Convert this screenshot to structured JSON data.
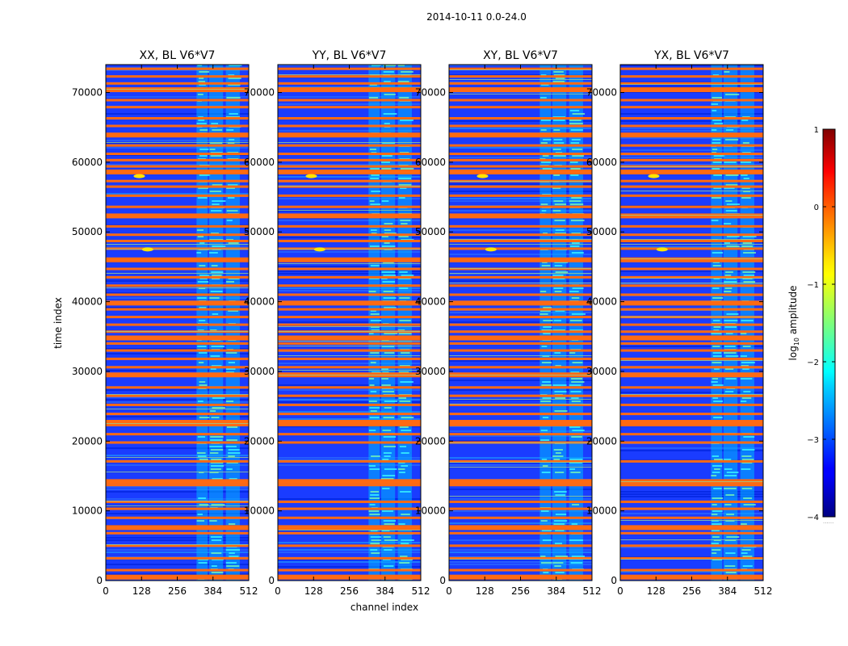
{
  "chart_data": {
    "type": "heatmap",
    "suptitle": "2014-10-11 0.0-24.0",
    "xlabel": "channel index",
    "ylabel": "time index",
    "xlim": [
      0,
      512
    ],
    "ylim": [
      0,
      74000
    ],
    "xticks": [
      0,
      128,
      256,
      384,
      512
    ],
    "yticks": [
      0,
      10000,
      20000,
      30000,
      40000,
      50000,
      60000,
      70000
    ],
    "panels": [
      {
        "title": "XX, BL V6*V7"
      },
      {
        "title": "YY, BL V6*V7"
      },
      {
        "title": "XY, BL V6*V7"
      },
      {
        "title": "YX, BL V6*V7"
      }
    ],
    "colorbar": {
      "label_prefix": "log",
      "label_sub": "10",
      "label_suffix": " amplitude",
      "range": [
        -4,
        1
      ],
      "ticks": [
        1,
        0,
        -1,
        -2,
        -3,
        -4
      ],
      "tick_labels": [
        "1",
        "0",
        "−1",
        "−2",
        "−3",
        "−4"
      ],
      "colormap": "jet",
      "extra_text": "......"
    },
    "flagged_rows_time_index": [
      500,
      1500,
      3200,
      5000,
      6800,
      7600,
      9000,
      10300,
      11300,
      13700,
      14200,
      17100,
      19800,
      21000,
      22300,
      22700,
      23900,
      25200,
      26500,
      27700,
      29500,
      30600,
      31800,
      33000,
      34000,
      34800,
      35700,
      36700,
      37800,
      38900,
      39800,
      41000,
      42300,
      43500,
      44700,
      46000,
      47600,
      48700,
      49600,
      50800,
      52300,
      53600,
      55200,
      56500,
      57300,
      58600,
      59400,
      60300,
      61200,
      62400,
      63900,
      65200,
      66300,
      67900,
      68900,
      70400,
      71300,
      72300,
      73400
    ],
    "rfi_band_channels": [
      [
        325,
        365
      ],
      [
        370,
        420
      ],
      [
        430,
        480
      ]
    ],
    "hotspots": [
      {
        "channel": 120,
        "time_index": 58000
      },
      {
        "channel": 150,
        "time_index": 47500
      }
    ]
  }
}
